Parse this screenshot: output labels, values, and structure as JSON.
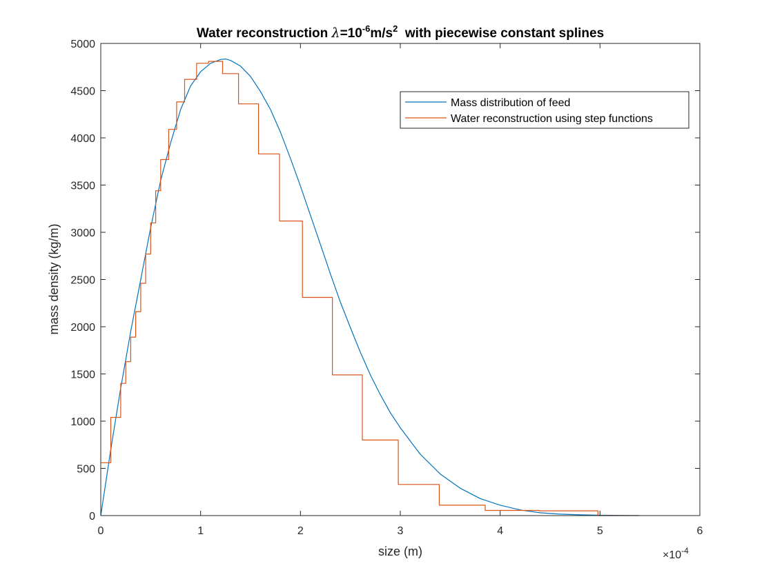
{
  "chart_data": {
    "type": "line",
    "title": {
      "pre": "Water reconstruction ",
      "lambda": "λ",
      "eq": "=10",
      "exp": "-6",
      "unit": "m/s",
      "unit_exp": "2",
      "post": "  with piecewise constant splines"
    },
    "xlabel": "size (m)",
    "ylabel": "mass density (kg/m)",
    "x_multiplier": {
      "base": "×10",
      "exp": "-4"
    },
    "xlim": [
      0,
      6
    ],
    "ylim": [
      0,
      5000
    ],
    "xticks": [
      0,
      1,
      2,
      3,
      4,
      5,
      6
    ],
    "yticks": [
      0,
      500,
      1000,
      1500,
      2000,
      2500,
      3000,
      3500,
      4000,
      4500,
      5000
    ],
    "legend_position": "top-right",
    "grid": false,
    "series": [
      {
        "name": "Mass distribution of feed",
        "color": "#0072BD",
        "style": "line",
        "x": [
          0,
          0.1,
          0.2,
          0.3,
          0.4,
          0.5,
          0.6,
          0.7,
          0.8,
          0.9,
          1.0,
          1.1,
          1.2,
          1.25,
          1.3,
          1.4,
          1.5,
          1.6,
          1.7,
          1.8,
          1.9,
          2.0,
          2.1,
          2.2,
          2.3,
          2.4,
          2.5,
          2.6,
          2.7,
          2.8,
          2.9,
          3.0,
          3.2,
          3.4,
          3.6,
          3.8,
          4.0,
          4.2,
          4.4,
          4.6,
          4.8,
          5.0,
          5.2,
          5.4
        ],
        "y": [
          0,
          700,
          1350,
          1950,
          2500,
          3050,
          3550,
          3950,
          4300,
          4550,
          4700,
          4790,
          4830,
          4835,
          4820,
          4760,
          4650,
          4490,
          4300,
          4060,
          3780,
          3490,
          3180,
          2870,
          2560,
          2260,
          1990,
          1730,
          1490,
          1280,
          1090,
          930,
          650,
          440,
          290,
          180,
          110,
          60,
          30,
          15,
          8,
          4,
          2,
          0
        ]
      },
      {
        "name": "Water reconstruction using step functions",
        "color": "#D95319",
        "style": "step",
        "edges": [
          0,
          0.1,
          0.2,
          0.25,
          0.3,
          0.35,
          0.4,
          0.45,
          0.5,
          0.55,
          0.6,
          0.68,
          0.76,
          0.84,
          0.96,
          1.08,
          1.22,
          1.38,
          1.58,
          1.79,
          2.02,
          2.32,
          2.62,
          2.98,
          3.39,
          3.85,
          4.39,
          4.98,
          5.38
        ],
        "values": [
          560,
          1040,
          1400,
          1630,
          1890,
          2160,
          2460,
          2770,
          3100,
          3440,
          3770,
          4090,
          4380,
          4620,
          4790,
          4810,
          4680,
          4360,
          3830,
          3120,
          2310,
          1490,
          800,
          330,
          110,
          55,
          50,
          0
        ]
      }
    ]
  }
}
